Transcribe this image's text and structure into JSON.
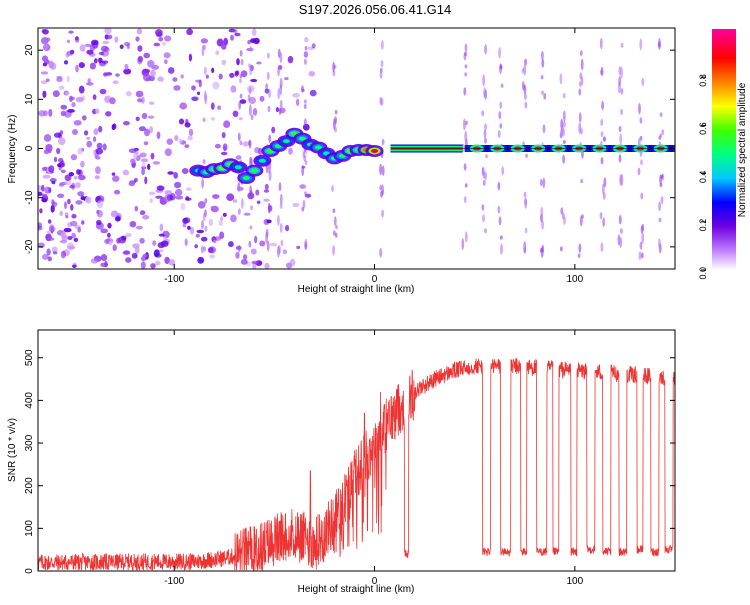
{
  "chart_data": [
    {
      "type": "heatmap",
      "title": "S197.2026.056.06.41.G14",
      "xlabel": "Height of straight line (km)",
      "ylabel": "Frequency (Hz)",
      "xlim": [
        -168,
        150
      ],
      "ylim": [
        -24.5,
        24.5
      ],
      "xticks": [
        -100,
        0,
        100
      ],
      "yticks": [
        -20,
        -10,
        0,
        10,
        20
      ],
      "colorbar": {
        "label": "Normalized spectral amplitude",
        "range": [
          0,
          1
        ],
        "ticks": [
          "0.0",
          "0.2",
          "0.4",
          "0.6",
          "0.8"
        ],
        "tick_values": [
          0,
          0.2,
          0.4,
          0.6,
          0.8
        ],
        "colors": [
          "#ffffff",
          "#c080ff",
          "#7000e0",
          "#0000ff",
          "#00c8ff",
          "#00ff80",
          "#40ff00",
          "#ffff00",
          "#ff8000",
          "#ff0000",
          "#ff00a0"
        ]
      },
      "noise_region": {
        "x_range": [
          -168,
          -30
        ],
        "freq_range": [
          -24,
          24
        ],
        "amplitude": 0.15
      },
      "ridge": [
        {
          "x": -88,
          "f": -4.5,
          "a": 0.45
        },
        {
          "x": -84,
          "f": -4.8,
          "a": 0.5
        },
        {
          "x": -80,
          "f": -4.2,
          "a": 0.55
        },
        {
          "x": -76,
          "f": -4.0,
          "a": 0.6
        },
        {
          "x": -72,
          "f": -3.2,
          "a": 0.55
        },
        {
          "x": -68,
          "f": -3.8,
          "a": 0.45
        },
        {
          "x": -64,
          "f": -6.0,
          "a": 0.5
        },
        {
          "x": -60,
          "f": -4.5,
          "a": 0.55
        },
        {
          "x": -56,
          "f": -2.5,
          "a": 0.45
        },
        {
          "x": -52,
          "f": -0.5,
          "a": 0.55
        },
        {
          "x": -48,
          "f": 0.5,
          "a": 0.5
        },
        {
          "x": -44,
          "f": 1.5,
          "a": 0.45
        },
        {
          "x": -40,
          "f": 3.0,
          "a": 0.55
        },
        {
          "x": -36,
          "f": 2.0,
          "a": 0.5
        },
        {
          "x": -32,
          "f": 0.8,
          "a": 0.45
        },
        {
          "x": -28,
          "f": 0.2,
          "a": 0.5
        },
        {
          "x": -24,
          "f": -1.0,
          "a": 0.45
        },
        {
          "x": -20,
          "f": -2.0,
          "a": 0.5
        },
        {
          "x": -16,
          "f": -1.5,
          "a": 0.5
        },
        {
          "x": -12,
          "f": -0.5,
          "a": 0.6
        },
        {
          "x": -8,
          "f": -0.3,
          "a": 0.55
        },
        {
          "x": -4,
          "f": -0.3,
          "a": 0.8
        },
        {
          "x": 0,
          "f": -0.5,
          "a": 0.9
        }
      ],
      "flat_segment": {
        "x_range": [
          8,
          44
        ],
        "f": 0,
        "a": 1.0
      },
      "periodic_blobs": {
        "x_start": 46,
        "x_end": 148,
        "step": 10.2,
        "f": 0,
        "a": 0.9
      },
      "vertical_streaks": [
        -85,
        -67,
        -62,
        -53,
        -47,
        -35,
        -20,
        4,
        45,
        55,
        63,
        75,
        84,
        94,
        103,
        114,
        123,
        133,
        143
      ]
    },
    {
      "type": "line",
      "xlabel": "Height of straight line (km)",
      "ylabel": "SNR (10 * v/v)",
      "xlim": [
        -168,
        150
      ],
      "ylim": [
        0,
        565
      ],
      "xticks": [
        -100,
        0,
        100
      ],
      "yticks": [
        0,
        100,
        200,
        300,
        400,
        500
      ],
      "color": "#ee3333",
      "trend": [
        {
          "x": -168,
          "y": 20
        },
        {
          "x": -90,
          "y": 22
        },
        {
          "x": -75,
          "y": 30
        },
        {
          "x": -60,
          "y": 45
        },
        {
          "x": -50,
          "y": 70
        },
        {
          "x": -40,
          "y": 90
        },
        {
          "x": -30,
          "y": 60
        },
        {
          "x": -20,
          "y": 120
        },
        {
          "x": -10,
          "y": 220
        },
        {
          "x": 0,
          "y": 300
        },
        {
          "x": 10,
          "y": 370
        },
        {
          "x": 20,
          "y": 420
        },
        {
          "x": 30,
          "y": 450
        },
        {
          "x": 40,
          "y": 470
        },
        {
          "x": 50,
          "y": 480
        },
        {
          "x": 70,
          "y": 480
        },
        {
          "x": 100,
          "y": 470
        },
        {
          "x": 130,
          "y": 460
        },
        {
          "x": 150,
          "y": 450
        }
      ],
      "noise_amplitude": 20,
      "spike_events": [
        {
          "x": -32,
          "y": 235
        },
        {
          "x": -5,
          "y": 370
        },
        {
          "x": 3,
          "y": 420
        }
      ],
      "dropouts": [
        {
          "x0": 15,
          "x1": 17,
          "y": 40
        },
        {
          "x0": 54,
          "x1": 58,
          "y": 45
        },
        {
          "x0": 63,
          "x1": 68,
          "y": 45
        },
        {
          "x0": 73,
          "x1": 76,
          "y": 45
        },
        {
          "x0": 81,
          "x1": 86,
          "y": 45
        },
        {
          "x0": 89,
          "x1": 92,
          "y": 45
        },
        {
          "x0": 98,
          "x1": 101,
          "y": 45
        },
        {
          "x0": 106,
          "x1": 110,
          "y": 50
        },
        {
          "x0": 114,
          "x1": 118,
          "y": 45
        },
        {
          "x0": 122,
          "x1": 126,
          "y": 45
        },
        {
          "x0": 131,
          "x1": 134,
          "y": 50
        },
        {
          "x0": 138,
          "x1": 142,
          "y": 45
        },
        {
          "x0": 145,
          "x1": 149,
          "y": 50
        }
      ]
    }
  ]
}
